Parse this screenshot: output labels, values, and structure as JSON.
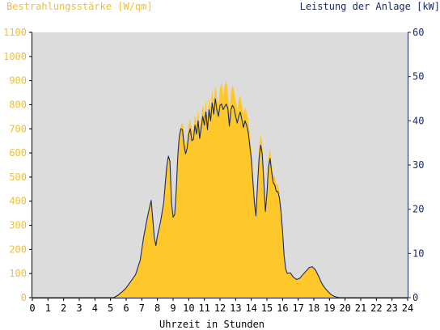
{
  "chart_data": {
    "type": "area",
    "left_axis_title": "Bestrahlungsstärke [W/qm]",
    "right_axis_title": "Leistung der Anlage [kW]",
    "xlabel": "Uhrzeit in Stunden",
    "xlim": [
      0,
      24
    ],
    "ylim_left": [
      0,
      1100
    ],
    "ylim_right": [
      0,
      60
    ],
    "x_ticks": [
      0,
      1,
      2,
      3,
      4,
      5,
      6,
      7,
      8,
      9,
      10,
      11,
      12,
      13,
      14,
      15,
      16,
      17,
      18,
      19,
      20,
      21,
      22,
      23,
      24
    ],
    "y_ticks_left": [
      0,
      100,
      200,
      300,
      400,
      500,
      600,
      700,
      800,
      900,
      1000,
      1100
    ],
    "y_ticks_right": [
      0,
      10,
      20,
      30,
      40,
      50,
      60
    ],
    "colors": {
      "plot_background": "#dcdcdc",
      "irradiance_fill": "#ffc82a",
      "power_line": "#1a2a6c",
      "left_axis": "#f0c030",
      "right_axis": "#1a2a6c"
    },
    "series": [
      {
        "name": "Bestrahlungsstärke [W/qm]",
        "axis": "left",
        "style": "area",
        "points": [
          [
            0,
            0
          ],
          [
            5.2,
            0
          ],
          [
            5.5,
            15
          ],
          [
            5.8,
            30
          ],
          [
            6.0,
            45
          ],
          [
            6.3,
            70
          ],
          [
            6.6,
            100
          ],
          [
            6.9,
            160
          ],
          [
            7.1,
            250
          ],
          [
            7.3,
            320
          ],
          [
            7.5,
            380
          ],
          [
            7.6,
            410
          ],
          [
            7.7,
            330
          ],
          [
            7.8,
            250
          ],
          [
            7.9,
            220
          ],
          [
            8.0,
            260
          ],
          [
            8.2,
            320
          ],
          [
            8.4,
            400
          ],
          [
            8.5,
            480
          ],
          [
            8.6,
            550
          ],
          [
            8.7,
            590
          ],
          [
            8.8,
            570
          ],
          [
            8.9,
            400
          ],
          [
            9.0,
            340
          ],
          [
            9.1,
            350
          ],
          [
            9.2,
            450
          ],
          [
            9.3,
            600
          ],
          [
            9.4,
            680
          ],
          [
            9.5,
            710
          ],
          [
            9.6,
            730
          ],
          [
            9.7,
            680
          ],
          [
            9.8,
            630
          ],
          [
            9.9,
            650
          ],
          [
            10.0,
            720
          ],
          [
            10.1,
            740
          ],
          [
            10.2,
            690
          ],
          [
            10.3,
            700
          ],
          [
            10.4,
            760
          ],
          [
            10.5,
            720
          ],
          [
            10.6,
            780
          ],
          [
            10.7,
            700
          ],
          [
            10.8,
            750
          ],
          [
            10.9,
            800
          ],
          [
            11.0,
            760
          ],
          [
            11.1,
            820
          ],
          [
            11.2,
            740
          ],
          [
            11.3,
            830
          ],
          [
            11.4,
            780
          ],
          [
            11.5,
            860
          ],
          [
            11.6,
            810
          ],
          [
            11.7,
            880
          ],
          [
            11.8,
            830
          ],
          [
            11.9,
            800
          ],
          [
            12.0,
            870
          ],
          [
            12.1,
            890
          ],
          [
            12.2,
            840
          ],
          [
            12.3,
            880
          ],
          [
            12.4,
            900
          ],
          [
            12.5,
            860
          ],
          [
            12.6,
            770
          ],
          [
            12.7,
            850
          ],
          [
            12.8,
            880
          ],
          [
            12.9,
            860
          ],
          [
            13.0,
            820
          ],
          [
            13.1,
            780
          ],
          [
            13.2,
            820
          ],
          [
            13.3,
            840
          ],
          [
            13.4,
            800
          ],
          [
            13.5,
            760
          ],
          [
            13.6,
            790
          ],
          [
            13.7,
            770
          ],
          [
            13.8,
            740
          ],
          [
            13.9,
            680
          ],
          [
            14.0,
            620
          ],
          [
            14.1,
            520
          ],
          [
            14.2,
            420
          ],
          [
            14.3,
            360
          ],
          [
            14.4,
            500
          ],
          [
            14.5,
            620
          ],
          [
            14.6,
            680
          ],
          [
            14.7,
            640
          ],
          [
            14.8,
            520
          ],
          [
            14.9,
            380
          ],
          [
            15.0,
            460
          ],
          [
            15.1,
            580
          ],
          [
            15.2,
            620
          ],
          [
            15.3,
            560
          ],
          [
            15.4,
            510
          ],
          [
            15.5,
            500
          ],
          [
            15.6,
            470
          ],
          [
            15.7,
            470
          ],
          [
            15.8,
            440
          ],
          [
            15.9,
            380
          ],
          [
            16.0,
            290
          ],
          [
            16.1,
            180
          ],
          [
            16.2,
            120
          ],
          [
            16.3,
            100
          ],
          [
            16.5,
            105
          ],
          [
            16.7,
            85
          ],
          [
            16.9,
            75
          ],
          [
            17.1,
            80
          ],
          [
            17.3,
            95
          ],
          [
            17.5,
            110
          ],
          [
            17.7,
            125
          ],
          [
            17.9,
            130
          ],
          [
            18.1,
            115
          ],
          [
            18.3,
            90
          ],
          [
            18.5,
            60
          ],
          [
            18.7,
            40
          ],
          [
            18.9,
            25
          ],
          [
            19.1,
            12
          ],
          [
            19.3,
            5
          ],
          [
            19.6,
            0
          ],
          [
            24,
            0
          ]
        ]
      },
      {
        "name": "Leistung der Anlage [kW]",
        "axis": "right",
        "style": "line",
        "points": [
          [
            0,
            0
          ],
          [
            5.2,
            0
          ],
          [
            5.5,
            0.6
          ],
          [
            5.8,
            1.5
          ],
          [
            6.0,
            2.2
          ],
          [
            6.3,
            3.7
          ],
          [
            6.6,
            5.2
          ],
          [
            6.9,
            8.5
          ],
          [
            7.1,
            13.3
          ],
          [
            7.3,
            17.2
          ],
          [
            7.5,
            20.5
          ],
          [
            7.6,
            22.0
          ],
          [
            7.7,
            17.8
          ],
          [
            7.8,
            13.5
          ],
          [
            7.9,
            11.8
          ],
          [
            8.0,
            14.0
          ],
          [
            8.2,
            17.2
          ],
          [
            8.4,
            21.5
          ],
          [
            8.5,
            25.8
          ],
          [
            8.6,
            29.8
          ],
          [
            8.7,
            32.0
          ],
          [
            8.8,
            30.8
          ],
          [
            8.9,
            21.5
          ],
          [
            9.0,
            18.2
          ],
          [
            9.1,
            18.8
          ],
          [
            9.2,
            24.2
          ],
          [
            9.3,
            32.0
          ],
          [
            9.4,
            36.5
          ],
          [
            9.5,
            38.2
          ],
          [
            9.6,
            38.0
          ],
          [
            9.7,
            34.5
          ],
          [
            9.8,
            32.5
          ],
          [
            9.9,
            33.8
          ],
          [
            10.0,
            37.0
          ],
          [
            10.1,
            38.2
          ],
          [
            10.2,
            35.5
          ],
          [
            10.3,
            35.8
          ],
          [
            10.4,
            39.0
          ],
          [
            10.5,
            37.0
          ],
          [
            10.6,
            40.0
          ],
          [
            10.7,
            36.0
          ],
          [
            10.8,
            38.5
          ],
          [
            10.9,
            41.0
          ],
          [
            11.0,
            39.0
          ],
          [
            11.1,
            42.0
          ],
          [
            11.2,
            38.0
          ],
          [
            11.3,
            42.5
          ],
          [
            11.4,
            40.0
          ],
          [
            11.5,
            44.0
          ],
          [
            11.6,
            41.5
          ],
          [
            11.7,
            45.0
          ],
          [
            11.8,
            42.5
          ],
          [
            11.9,
            41.0
          ],
          [
            12.0,
            43.5
          ],
          [
            12.1,
            43.8
          ],
          [
            12.2,
            42.5
          ],
          [
            12.3,
            43.2
          ],
          [
            12.4,
            43.8
          ],
          [
            12.5,
            42.8
          ],
          [
            12.6,
            38.8
          ],
          [
            12.7,
            42.5
          ],
          [
            12.8,
            43.5
          ],
          [
            12.9,
            42.8
          ],
          [
            13.0,
            41.0
          ],
          [
            13.1,
            39.5
          ],
          [
            13.2,
            41.0
          ],
          [
            13.3,
            42.0
          ],
          [
            13.4,
            40.2
          ],
          [
            13.5,
            38.5
          ],
          [
            13.6,
            40.0
          ],
          [
            13.7,
            39.0
          ],
          [
            13.8,
            37.5
          ],
          [
            13.9,
            34.5
          ],
          [
            14.0,
            31.5
          ],
          [
            14.1,
            26.5
          ],
          [
            14.2,
            21.5
          ],
          [
            14.3,
            18.5
          ],
          [
            14.4,
            25.5
          ],
          [
            14.5,
            31.5
          ],
          [
            14.6,
            34.5
          ],
          [
            14.7,
            32.5
          ],
          [
            14.8,
            26.5
          ],
          [
            14.9,
            19.5
          ],
          [
            15.0,
            23.5
          ],
          [
            15.1,
            29.5
          ],
          [
            15.2,
            31.5
          ],
          [
            15.3,
            28.5
          ],
          [
            15.4,
            26.0
          ],
          [
            15.5,
            25.5
          ],
          [
            15.6,
            24.0
          ],
          [
            15.7,
            24.0
          ],
          [
            15.8,
            22.5
          ],
          [
            15.9,
            19.5
          ],
          [
            16.0,
            15.0
          ],
          [
            16.1,
            9.5
          ],
          [
            16.2,
            6.5
          ],
          [
            16.3,
            5.5
          ],
          [
            16.5,
            5.6
          ],
          [
            16.7,
            4.6
          ],
          [
            16.9,
            4.1
          ],
          [
            17.1,
            4.4
          ],
          [
            17.3,
            5.2
          ],
          [
            17.5,
            6.0
          ],
          [
            17.7,
            6.8
          ],
          [
            17.9,
            7.0
          ],
          [
            18.1,
            6.3
          ],
          [
            18.3,
            4.9
          ],
          [
            18.5,
            3.3
          ],
          [
            18.7,
            2.2
          ],
          [
            18.9,
            1.4
          ],
          [
            19.1,
            0.7
          ],
          [
            19.3,
            0.3
          ],
          [
            19.6,
            0
          ],
          [
            24,
            0
          ]
        ]
      }
    ]
  }
}
